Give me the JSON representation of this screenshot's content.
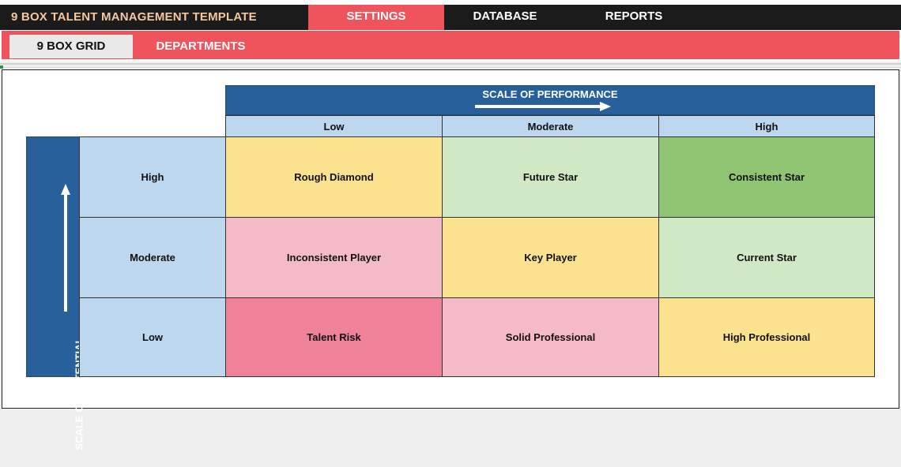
{
  "app": {
    "title": "9 BOX TALENT MANAGEMENT TEMPLATE",
    "tabs": [
      {
        "label": "SETTINGS",
        "active": true
      },
      {
        "label": "DATABASE",
        "active": false
      },
      {
        "label": "REPORTS",
        "active": false
      }
    ],
    "subtabs": [
      {
        "label": "9 BOX GRID",
        "active": true
      },
      {
        "label": "DEPARTMENTS",
        "active": false
      }
    ]
  },
  "colors": {
    "accent_red": "#ef535b",
    "header_blue": "#27609b",
    "label_blue": "#bdd7ee",
    "yellow": "#fae28f",
    "light_green": "#d1e8c4",
    "green": "#8fc472",
    "pink": "#f5bac7",
    "rose": "#ef8199"
  },
  "grid": {
    "performance_title": "SCALE OF PERFORMANCE",
    "potential_title": "SCALE OF POTENTIAL",
    "performance_levels": [
      "Low",
      "Moderate",
      "High"
    ],
    "potential_levels": [
      "High",
      "Moderate",
      "Low"
    ],
    "boxes": [
      [
        "Rough Diamond",
        "Future Star",
        "Consistent Star"
      ],
      [
        "Inconsistent Player",
        "Key Player",
        "Current Star"
      ],
      [
        "Talent Risk",
        "Solid Professional",
        "High Professional"
      ]
    ]
  }
}
